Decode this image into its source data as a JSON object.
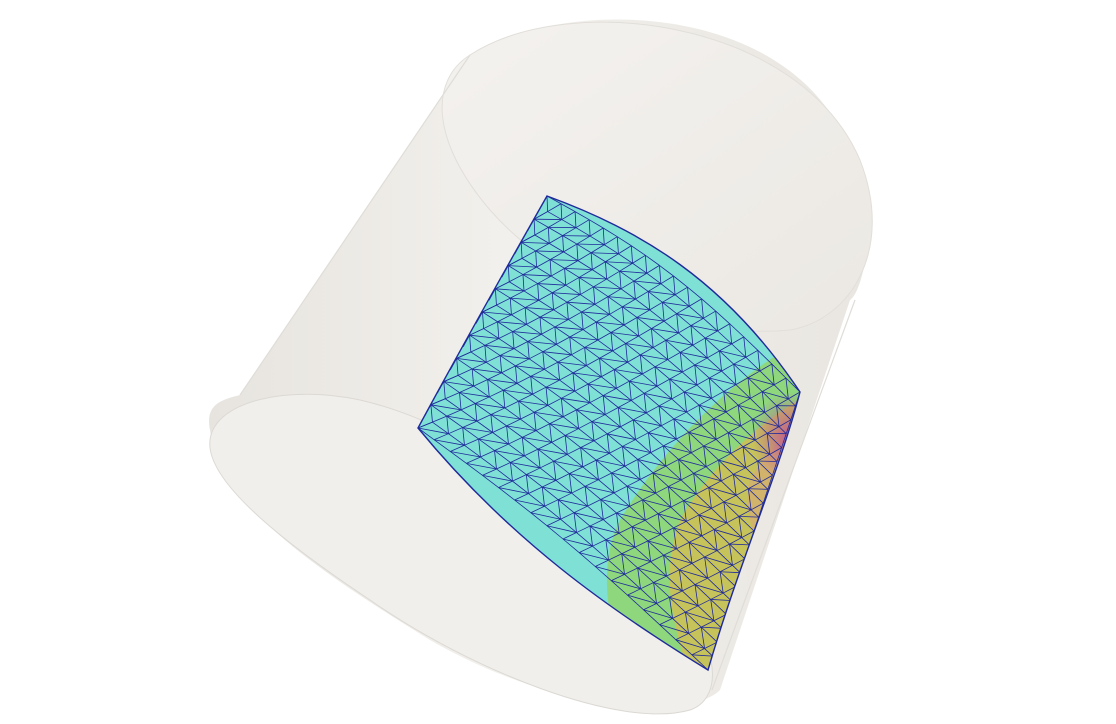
{
  "scene": {
    "background_color": "#ffffff",
    "objects": [
      {
        "name": "transparent-cylinder",
        "kind": "cylinder",
        "surface_color": "#efece7",
        "edge_color": "#d6d3ce"
      },
      {
        "name": "meshed-surface-patch",
        "kind": "triangulated-patch",
        "mesh_line_color": "#1f2a9a",
        "color_scale": [
          "#7fe3d6",
          "#8fdc7c",
          "#c9c45a",
          "#d9b06a",
          "#c86a8a"
        ]
      }
    ]
  }
}
